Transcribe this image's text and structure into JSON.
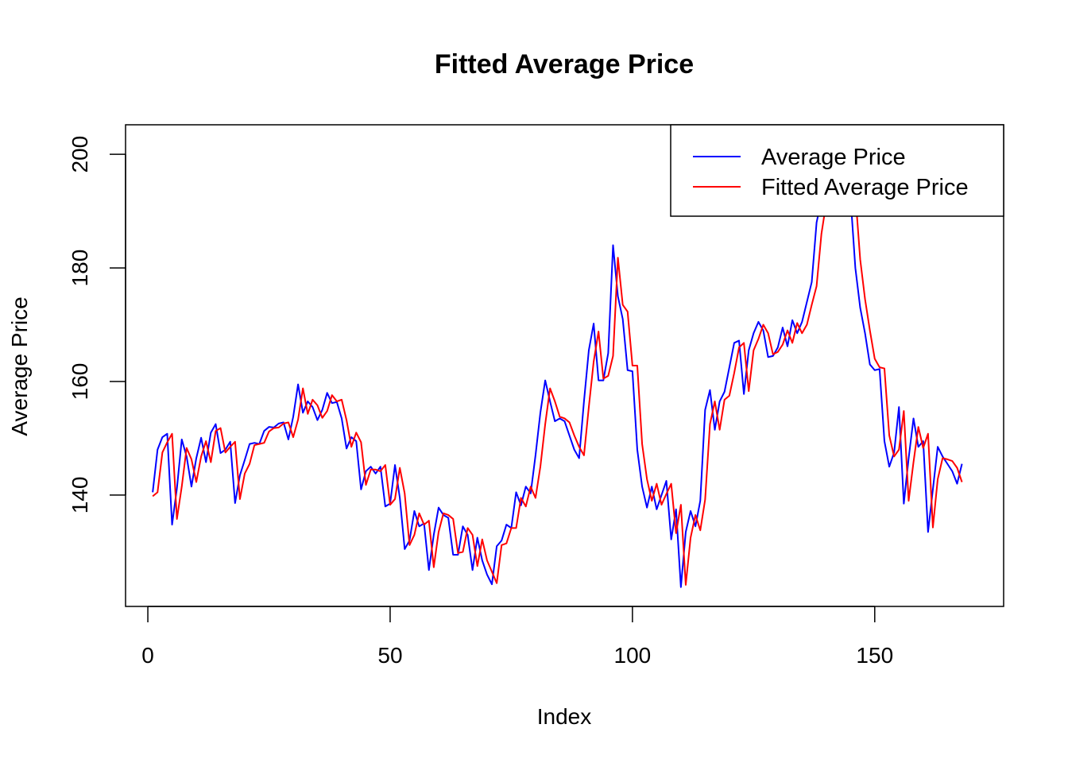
{
  "chart_data": {
    "type": "line",
    "title": "Fitted Average Price",
    "xlabel": "Index",
    "ylabel": "Average Price",
    "xlim": [
      -4.6,
      176.6
    ],
    "ylim": [
      120.4,
      205.2
    ],
    "x_ticks": [
      0,
      50,
      100,
      150
    ],
    "y_ticks": [
      140,
      160,
      180,
      200
    ],
    "grid": false,
    "legend_position": "top-right",
    "series": [
      {
        "name": "Average Price",
        "color": "#0000ff",
        "values": [
          140.5,
          148.0,
          150.2,
          150.8,
          134.8,
          141.2,
          149.8,
          146.8,
          141.5,
          146.5,
          150.1,
          145.8,
          151.0,
          152.5,
          147.4,
          148.0,
          149.4,
          138.6,
          143.5,
          146.2,
          149.0,
          149.2,
          149.0,
          151.3,
          152.0,
          151.9,
          152.6,
          152.8,
          149.8,
          153.8,
          159.5,
          154.5,
          156.5,
          155.5,
          153.2,
          155.0,
          158.0,
          156.2,
          156.4,
          153.5,
          148.2,
          150.2,
          149.5,
          141.0,
          144.2,
          145.0,
          143.8,
          145.0,
          138.0,
          138.5,
          145.3,
          139.5,
          130.5,
          132.0,
          137.2,
          134.5,
          135.0,
          126.8,
          133.0,
          137.8,
          136.5,
          136.0,
          129.5,
          129.5,
          134.5,
          133.0,
          126.8,
          132.5,
          128.5,
          126.0,
          124.3,
          131.0,
          132.0,
          134.8,
          134.2,
          140.5,
          138.2,
          141.5,
          140.3,
          147.0,
          154.5,
          160.2,
          156.5,
          153.0,
          153.5,
          153.0,
          150.5,
          148.0,
          146.5,
          156.5,
          165.5,
          170.2,
          160.2,
          160.2,
          165.0,
          184.0,
          175.0,
          171.0,
          162.0,
          161.8,
          148.0,
          141.5,
          137.8,
          141.5,
          137.5,
          140.0,
          142.5,
          132.2,
          137.5,
          123.8,
          133.5,
          137.2,
          134.5,
          139.0,
          155.0,
          158.5,
          151.5,
          156.5,
          158.2,
          162.5,
          166.8,
          167.2,
          157.8,
          165.5,
          168.5,
          170.5,
          169.0,
          164.3,
          164.5,
          166.0,
          169.5,
          166.2,
          170.8,
          168.5,
          170.5,
          174.0,
          177.5,
          188.0,
          192.0,
          193.0,
          193.5,
          193.0,
          193.5,
          193.0,
          192.5,
          180.0,
          173.0,
          168.5,
          163.0,
          162.0,
          162.2,
          149.5,
          145.0,
          147.5,
          155.5,
          138.5,
          146.5,
          153.5,
          148.5,
          149.5,
          133.5,
          141.0,
          148.5,
          146.8,
          145.5,
          144.2,
          142.0,
          145.5
        ]
      },
      {
        "name": "Fitted Average Price",
        "color": "#ff0000",
        "values": [
          139.8,
          140.5,
          147.5,
          149.3,
          150.8,
          135.8,
          141.5,
          148.3,
          146.3,
          142.3,
          146.8,
          149.5,
          145.8,
          151.3,
          151.8,
          147.5,
          148.5,
          149.4,
          139.3,
          143.8,
          145.5,
          148.8,
          149.0,
          149.2,
          151.2,
          151.8,
          151.9,
          152.6,
          152.8,
          150.2,
          153.3,
          158.8,
          154.3,
          156.8,
          155.8,
          153.6,
          154.8,
          157.6,
          156.5,
          156.8,
          153.2,
          148.5,
          151.0,
          149.3,
          141.8,
          144.5,
          144.5,
          144.2,
          145.3,
          138.3,
          139.3,
          144.8,
          140.3,
          131.2,
          133.0,
          136.8,
          134.8,
          135.5,
          127.3,
          133.5,
          136.8,
          136.5,
          135.8,
          129.8,
          130.0,
          134.2,
          133.0,
          127.5,
          132.2,
          128.5,
          126.5,
          124.5,
          131.2,
          131.5,
          134.2,
          134.2,
          139.5,
          138.0,
          141.5,
          139.5,
          145.0,
          152.5,
          158.8,
          156.5,
          153.8,
          153.5,
          152.8,
          150.5,
          148.5,
          147.0,
          155.5,
          163.5,
          168.8,
          160.5,
          161.0,
          164.5,
          181.8,
          173.5,
          172.3,
          162.8,
          162.8,
          149.0,
          142.8,
          139.0,
          142.0,
          138.3,
          140.2,
          142.0,
          133.3,
          138.3,
          124.2,
          132.5,
          136.5,
          133.8,
          139.2,
          152.5,
          156.5,
          151.5,
          156.8,
          157.5,
          161.5,
          166.0,
          166.8,
          158.3,
          165.5,
          167.5,
          170.0,
          168.5,
          164.8,
          165.2,
          166.5,
          169.0,
          166.8,
          170.3,
          168.5,
          170.0,
          173.5,
          176.8,
          186.0,
          191.5,
          193.0,
          193.5,
          193.2,
          193.5,
          193.0,
          193.0,
          181.5,
          174.5,
          169.0,
          164.0,
          162.5,
          162.3,
          150.5,
          146.8,
          148.0,
          154.8,
          139.0,
          145.8,
          152.0,
          148.3,
          150.8,
          134.3,
          142.8,
          146.5,
          146.3,
          146.0,
          144.8,
          142.3
        ]
      }
    ]
  }
}
